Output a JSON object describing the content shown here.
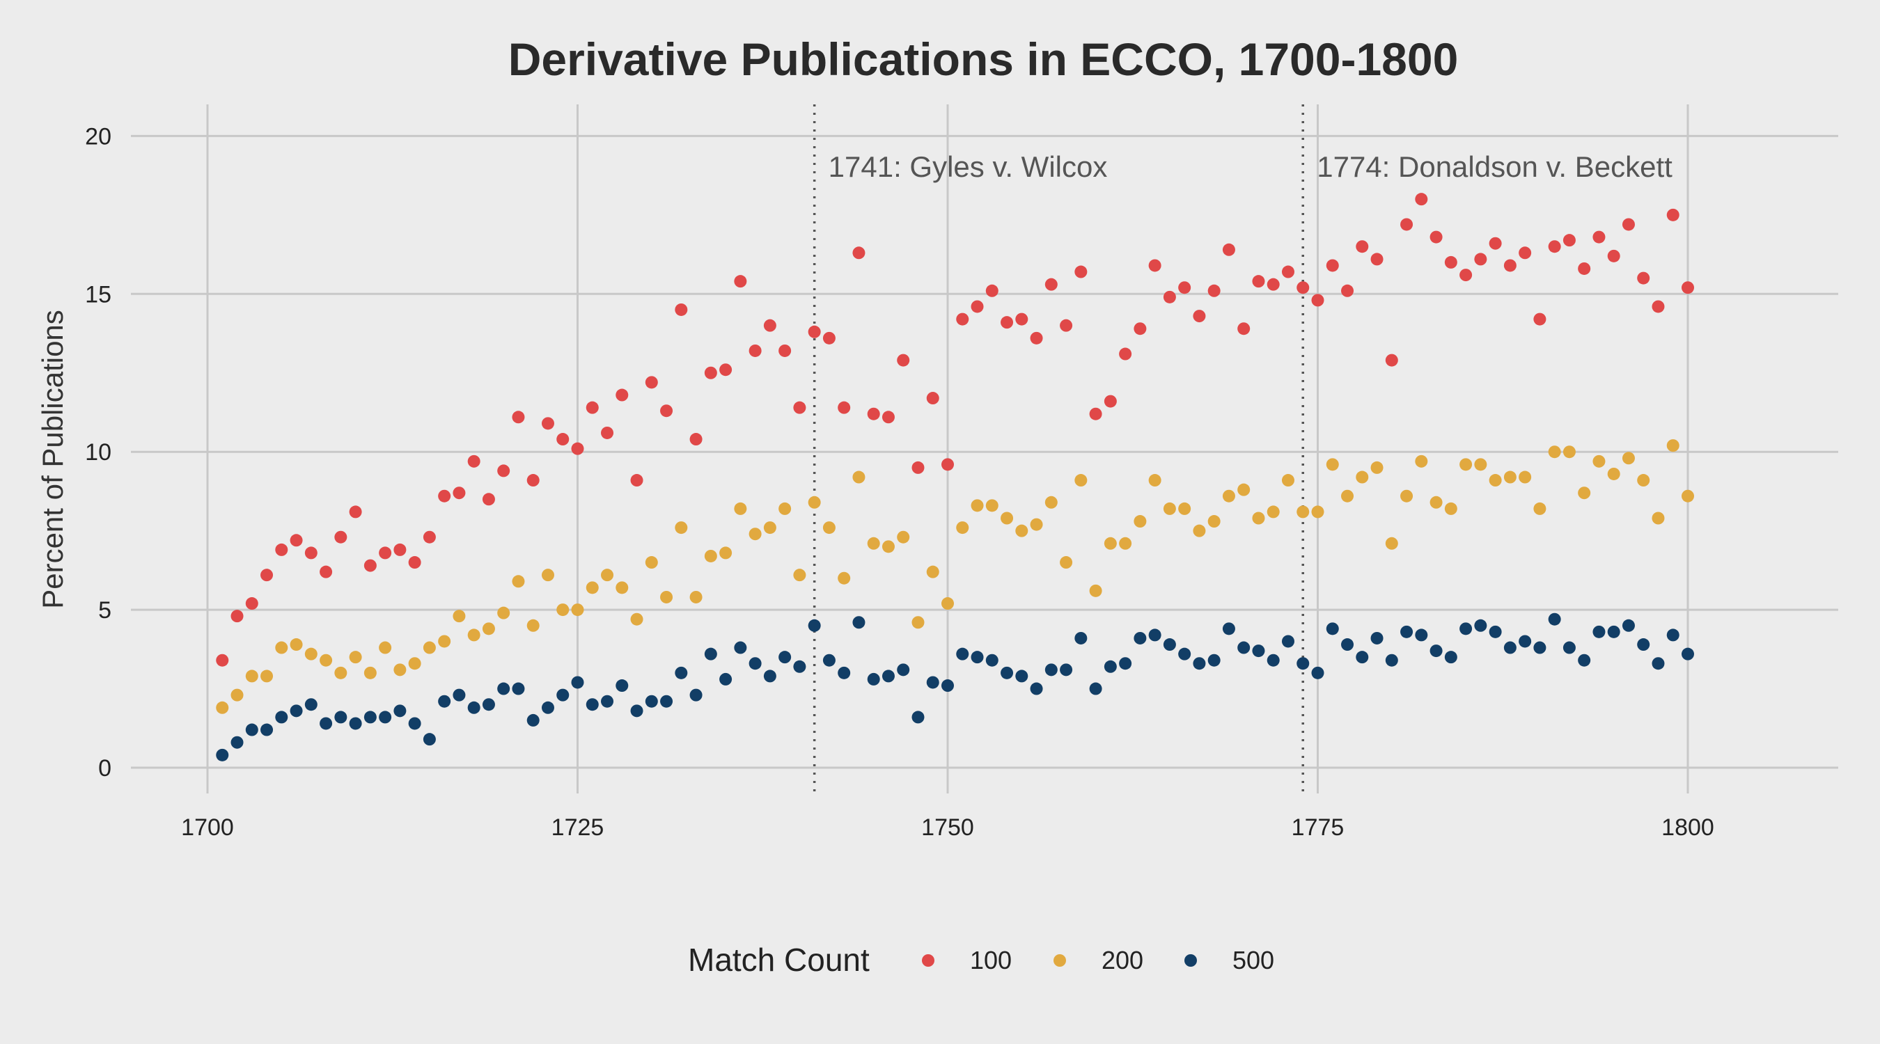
{
  "chart_data": {
    "type": "scatter",
    "title": "Derivative Publications in ECCO, 1700-1800",
    "xlabel": "",
    "ylabel": "Percent of Publications",
    "xlim": [
      1695,
      1810
    ],
    "ylim": [
      -1,
      21
    ],
    "xticks": [
      1700,
      1725,
      1750,
      1775,
      1800
    ],
    "yticks": [
      0,
      5,
      10,
      15,
      20
    ],
    "grid": true,
    "legend": {
      "title": "Match Count",
      "placement": "bottom"
    },
    "annotations": [
      {
        "x": 1741,
        "label": "1741: Gyles v. Wilcox"
      },
      {
        "x": 1774,
        "label": "1774: Donaldson v. Beckett"
      }
    ],
    "x": [
      1701,
      1702,
      1703,
      1704,
      1705,
      1706,
      1707,
      1708,
      1709,
      1710,
      1711,
      1712,
      1713,
      1714,
      1715,
      1716,
      1717,
      1718,
      1719,
      1720,
      1721,
      1722,
      1723,
      1724,
      1725,
      1726,
      1727,
      1728,
      1729,
      1730,
      1731,
      1732,
      1733,
      1734,
      1735,
      1736,
      1737,
      1738,
      1739,
      1740,
      1741,
      1742,
      1743,
      1744,
      1745,
      1746,
      1747,
      1748,
      1749,
      1750,
      1751,
      1752,
      1753,
      1754,
      1755,
      1756,
      1757,
      1758,
      1759,
      1760,
      1761,
      1762,
      1763,
      1764,
      1765,
      1766,
      1767,
      1768,
      1769,
      1770,
      1771,
      1772,
      1773,
      1774,
      1775,
      1776,
      1777,
      1778,
      1779,
      1780,
      1781,
      1782,
      1783,
      1784,
      1785,
      1786,
      1787,
      1788,
      1789,
      1790,
      1791,
      1792,
      1793,
      1794,
      1795,
      1796,
      1797,
      1798,
      1799,
      1800
    ],
    "series": [
      {
        "name": "100",
        "color": "#e04848",
        "values": [
          3.4,
          4.8,
          5.2,
          6.1,
          6.9,
          7.2,
          6.8,
          6.2,
          7.3,
          8.1,
          6.4,
          6.8,
          6.9,
          6.5,
          7.3,
          8.6,
          8.7,
          9.7,
          8.5,
          9.4,
          11.1,
          9.1,
          10.9,
          10.4,
          10.1,
          11.4,
          10.6,
          11.8,
          9.1,
          12.2,
          11.3,
          14.5,
          10.4,
          12.5,
          12.6,
          15.4,
          13.2,
          14.0,
          13.2,
          11.4,
          13.8,
          13.6,
          11.4,
          16.3,
          11.2,
          11.1,
          12.9,
          9.5,
          11.7,
          9.6,
          14.2,
          14.6,
          15.1,
          14.1,
          14.2,
          13.6,
          15.3,
          14.0,
          15.7,
          11.2,
          11.6,
          13.1,
          13.9,
          15.9,
          14.9,
          15.2,
          14.3,
          15.1,
          16.4,
          13.9,
          15.4,
          15.3,
          15.7,
          15.2,
          14.8,
          15.9,
          15.1,
          16.5,
          16.1,
          12.9,
          17.2,
          18.0,
          16.8,
          16.0,
          15.6,
          16.1,
          16.6,
          15.9,
          16.3,
          14.2,
          16.5,
          16.7,
          15.8,
          16.8,
          16.2,
          17.2,
          15.5,
          14.6,
          17.5,
          15.2
        ]
      },
      {
        "name": "200",
        "color": "#e1a93f",
        "values": [
          1.9,
          2.3,
          2.9,
          2.9,
          3.8,
          3.9,
          3.6,
          3.4,
          3.0,
          3.5,
          3.0,
          3.8,
          3.1,
          3.3,
          3.8,
          4.0,
          4.8,
          4.2,
          4.4,
          4.9,
          5.9,
          4.5,
          6.1,
          5.0,
          5.0,
          5.7,
          6.1,
          5.7,
          4.7,
          6.5,
          5.4,
          7.6,
          5.4,
          6.7,
          6.8,
          8.2,
          7.4,
          7.6,
          8.2,
          6.1,
          8.4,
          7.6,
          6.0,
          9.2,
          7.1,
          7.0,
          7.3,
          4.6,
          6.2,
          5.2,
          7.6,
          8.3,
          8.3,
          7.9,
          7.5,
          7.7,
          8.4,
          6.5,
          9.1,
          5.6,
          7.1,
          7.1,
          7.8,
          9.1,
          8.2,
          8.2,
          7.5,
          7.8,
          8.6,
          8.8,
          7.9,
          8.1,
          9.1,
          8.1,
          8.1,
          9.6,
          8.6,
          9.2,
          9.5,
          7.1,
          8.6,
          9.7,
          8.4,
          8.2,
          9.6,
          9.6,
          9.1,
          9.2,
          9.2,
          8.2,
          10.0,
          10.0,
          8.7,
          9.7,
          9.3,
          9.8,
          9.1,
          7.9,
          10.2,
          8.6
        ]
      },
      {
        "name": "500",
        "color": "#123e66",
        "values": [
          0.4,
          0.8,
          1.2,
          1.2,
          1.6,
          1.8,
          2.0,
          1.4,
          1.6,
          1.4,
          1.6,
          1.6,
          1.8,
          1.4,
          0.9,
          2.1,
          2.3,
          1.9,
          2.0,
          2.5,
          2.5,
          1.5,
          1.9,
          2.3,
          2.7,
          2.0,
          2.1,
          2.6,
          1.8,
          2.1,
          2.1,
          3.0,
          2.3,
          3.6,
          2.8,
          3.8,
          3.3,
          2.9,
          3.5,
          3.2,
          4.5,
          3.4,
          3.0,
          4.6,
          2.8,
          2.9,
          3.1,
          1.6,
          2.7,
          2.6,
          3.6,
          3.5,
          3.4,
          3.0,
          2.9,
          2.5,
          3.1,
          3.1,
          4.1,
          2.5,
          3.2,
          3.3,
          4.1,
          4.2,
          3.9,
          3.6,
          3.3,
          3.4,
          4.4,
          3.8,
          3.7,
          3.4,
          4.0,
          3.3,
          3.0,
          4.4,
          3.9,
          3.5,
          4.1,
          3.4,
          4.3,
          4.2,
          3.7,
          3.5,
          4.4,
          4.5,
          4.3,
          3.8,
          4.0,
          3.8,
          4.7,
          3.8,
          3.4,
          4.3,
          4.3,
          4.5,
          3.9,
          3.3,
          4.2,
          3.6
        ]
      }
    ]
  }
}
